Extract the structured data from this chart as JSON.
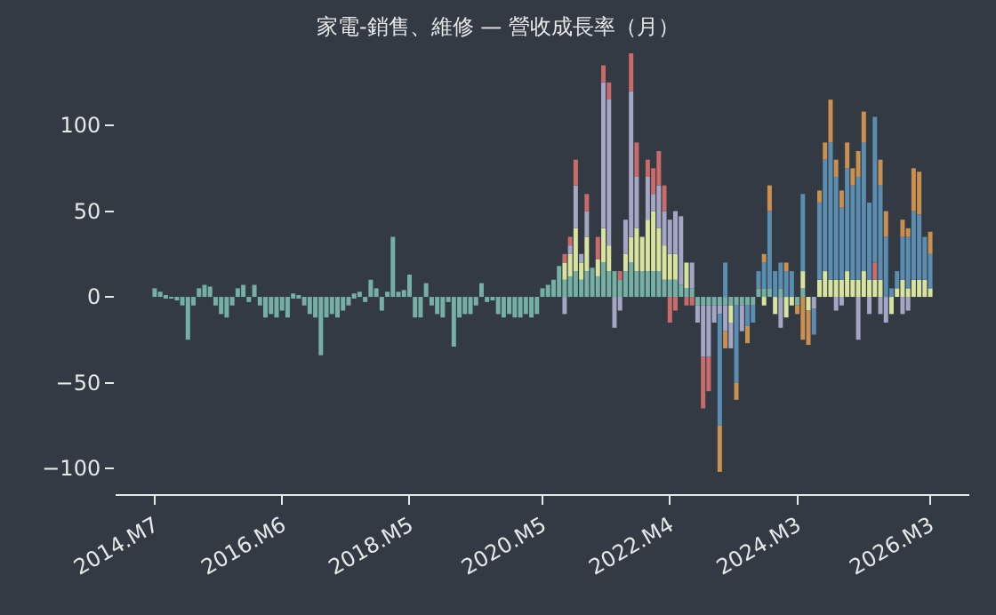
{
  "chart_data": {
    "type": "bar",
    "stacked": true,
    "title": "家電-銷售、維修 — 營收成長率（月）",
    "categories": [
      "2014.M7",
      null,
      null,
      null,
      null,
      null,
      null,
      null,
      null,
      null,
      null,
      null,
      null,
      null,
      null,
      null,
      null,
      null,
      null,
      null,
      null,
      null,
      null,
      "2016.M6",
      null,
      null,
      null,
      null,
      null,
      null,
      null,
      null,
      null,
      null,
      null,
      null,
      null,
      null,
      null,
      null,
      null,
      null,
      null,
      null,
      null,
      null,
      "2018.M5",
      null,
      null,
      null,
      null,
      null,
      null,
      null,
      null,
      null,
      null,
      null,
      null,
      null,
      null,
      null,
      null,
      null,
      null,
      null,
      null,
      null,
      null,
      null,
      "2020.M5",
      null,
      null,
      null,
      null,
      null,
      null,
      null,
      null,
      null,
      null,
      null,
      null,
      null,
      null,
      null,
      null,
      null,
      null,
      null,
      null,
      null,
      null,
      "2022.M4",
      null,
      null,
      null,
      null,
      null,
      null,
      null,
      null,
      null,
      null,
      null,
      null,
      null,
      null,
      null,
      null,
      null,
      null,
      null,
      null,
      null,
      null,
      "2024.M3",
      null,
      null,
      null,
      null,
      null,
      null,
      null,
      null,
      null,
      null,
      null,
      null,
      null,
      null,
      null,
      null,
      null,
      null,
      null,
      null,
      null,
      null,
      null,
      "2026.M3"
    ],
    "ylim": [
      -115,
      142
    ],
    "yticks": [
      -100,
      -50,
      0,
      50,
      100
    ],
    "grid": false,
    "series": [
      {
        "color": "#76b0a4",
        "values": [
          5,
          3,
          1,
          -1,
          -2,
          -5,
          -25,
          -5,
          5,
          7,
          6,
          -5,
          -10,
          -12,
          -5,
          5,
          7,
          -3,
          7,
          -5,
          -12,
          -10,
          -12,
          -8,
          -12,
          2,
          1,
          -5,
          -10,
          -12,
          -34,
          -12,
          -10,
          -12,
          -8,
          -5,
          2,
          3,
          -3,
          10,
          5,
          -8,
          3,
          35,
          3,
          4,
          13,
          -12,
          -12,
          8,
          -5,
          -10,
          -12,
          -3,
          -29,
          -12,
          -10,
          -10,
          -5,
          8,
          -3,
          -2,
          -10,
          -12,
          -10,
          -12,
          -12,
          -10,
          -12,
          -10,
          5,
          7,
          10,
          18,
          10,
          12,
          15,
          10,
          15,
          17,
          12,
          20,
          15,
          15,
          10,
          15,
          20,
          15,
          15,
          15,
          15,
          15,
          10,
          10,
          10,
          7,
          5,
          5,
          -5,
          -5,
          -5,
          -5,
          -5,
          -5,
          -5,
          -5,
          -5,
          -5,
          -5,
          5,
          5,
          5,
          null,
          5,
          null,
          null,
          -5,
          5,
          null,
          null,
          null,
          null,
          null,
          null,
          null,
          null,
          null,
          null,
          null,
          null,
          null,
          null,
          null,
          null,
          null,
          null,
          null,
          null,
          null,
          null,
          null
        ]
      },
      {
        "color": "#d9e3a0",
        "values": [
          null,
          null,
          null,
          null,
          null,
          null,
          null,
          null,
          null,
          null,
          null,
          null,
          null,
          null,
          null,
          null,
          null,
          null,
          null,
          null,
          null,
          null,
          null,
          null,
          null,
          null,
          null,
          null,
          null,
          null,
          null,
          null,
          null,
          null,
          null,
          null,
          null,
          null,
          null,
          null,
          null,
          null,
          null,
          null,
          null,
          null,
          null,
          null,
          null,
          null,
          null,
          null,
          null,
          null,
          null,
          null,
          null,
          null,
          null,
          null,
          null,
          null,
          null,
          null,
          null,
          null,
          null,
          null,
          null,
          null,
          null,
          null,
          null,
          null,
          10,
          13,
          25,
          10,
          20,
          null,
          10,
          20,
          15,
          null,
          null,
          10,
          15,
          25,
          20,
          30,
          35,
          25,
          20,
          15,
          15,
          null,
          15,
          null,
          null,
          null,
          null,
          null,
          null,
          null,
          -10,
          null,
          null,
          null,
          null,
          null,
          -5,
          null,
          -10,
          null,
          -12,
          -5,
          null,
          10,
          -8,
          null,
          10,
          15,
          10,
          10,
          10,
          15,
          10,
          10,
          15,
          10,
          10,
          10,
          null,
          -10,
          5,
          10,
          5,
          10,
          10,
          10,
          5
        ]
      },
      {
        "color": "#a4a6c4",
        "values": [
          null,
          null,
          null,
          null,
          null,
          null,
          null,
          null,
          null,
          null,
          null,
          null,
          null,
          null,
          null,
          null,
          null,
          null,
          null,
          null,
          null,
          null,
          null,
          null,
          null,
          null,
          null,
          null,
          null,
          null,
          null,
          null,
          null,
          null,
          null,
          null,
          null,
          null,
          null,
          null,
          null,
          null,
          null,
          null,
          null,
          null,
          null,
          null,
          null,
          null,
          null,
          null,
          null,
          null,
          null,
          null,
          null,
          null,
          null,
          null,
          null,
          null,
          null,
          null,
          null,
          null,
          null,
          null,
          null,
          null,
          null,
          null,
          null,
          null,
          -10,
          5,
          25,
          5,
          15,
          null,
          null,
          85,
          85,
          -18,
          -8,
          20,
          85,
          30,
          null,
          25,
          10,
          25,
          20,
          20,
          25,
          40,
          null,
          15,
          -10,
          -30,
          -30,
          -10,
          -5,
          -15,
          -15,
          null,
          -15,
          null,
          null,
          null,
          null,
          null,
          null,
          -18,
          null,
          null,
          null,
          null,
          null,
          -7,
          null,
          null,
          null,
          -8,
          -5,
          null,
          null,
          -25,
          null,
          -10,
          null,
          -10,
          -15,
          null,
          null,
          -10,
          -8,
          null,
          null,
          null,
          null
        ]
      },
      {
        "color": "#c96b6b",
        "values": [
          null,
          null,
          null,
          null,
          null,
          null,
          null,
          null,
          null,
          null,
          null,
          null,
          null,
          null,
          null,
          null,
          null,
          null,
          null,
          null,
          null,
          null,
          null,
          null,
          null,
          null,
          null,
          null,
          null,
          null,
          null,
          null,
          null,
          null,
          null,
          null,
          null,
          null,
          null,
          null,
          null,
          null,
          null,
          null,
          null,
          null,
          null,
          null,
          null,
          null,
          null,
          null,
          null,
          null,
          null,
          null,
          null,
          null,
          null,
          null,
          null,
          null,
          null,
          null,
          null,
          null,
          null,
          null,
          null,
          null,
          null,
          null,
          null,
          null,
          5,
          5,
          15,
          null,
          10,
          null,
          13,
          10,
          10,
          null,
          5,
          null,
          22,
          20,
          null,
          10,
          15,
          20,
          15,
          -15,
          -8,
          null,
          -5,
          -5,
          null,
          -30,
          -20,
          null,
          null,
          null,
          null,
          null,
          null,
          null,
          null,
          null,
          null,
          null,
          null,
          null,
          null,
          null,
          null,
          null,
          null,
          null,
          null,
          null,
          null,
          null,
          null,
          null,
          null,
          null,
          null,
          null,
          10,
          null,
          null,
          null,
          null,
          null,
          null,
          null,
          null,
          null,
          null
        ]
      },
      {
        "color": "#5b8db0",
        "values": [
          null,
          null,
          null,
          null,
          null,
          null,
          null,
          null,
          null,
          null,
          null,
          null,
          null,
          null,
          null,
          null,
          null,
          null,
          null,
          null,
          null,
          null,
          null,
          null,
          null,
          null,
          null,
          null,
          null,
          null,
          null,
          null,
          null,
          null,
          null,
          null,
          null,
          null,
          null,
          null,
          null,
          null,
          null,
          null,
          null,
          null,
          null,
          null,
          null,
          null,
          null,
          null,
          null,
          null,
          null,
          null,
          null,
          null,
          null,
          null,
          null,
          null,
          null,
          null,
          null,
          null,
          null,
          null,
          null,
          null,
          null,
          null,
          null,
          null,
          null,
          null,
          null,
          null,
          null,
          null,
          null,
          null,
          null,
          null,
          null,
          null,
          null,
          null,
          null,
          null,
          null,
          null,
          null,
          null,
          null,
          null,
          null,
          null,
          null,
          null,
          null,
          null,
          -65,
          20,
          null,
          -45,
          null,
          -12,
          -10,
          10,
          15,
          45,
          15,
          15,
          15,
          15,
          null,
          45,
          null,
          -15,
          45,
          65,
          80,
          60,
          42,
          60,
          55,
          60,
          75,
          45,
          85,
          55,
          35,
          5,
          10,
          25,
          30,
          40,
          38,
          25,
          20
        ]
      },
      {
        "color": "#c99050",
        "values": [
          null,
          null,
          null,
          null,
          null,
          null,
          null,
          null,
          null,
          null,
          null,
          null,
          null,
          null,
          null,
          null,
          null,
          null,
          null,
          null,
          null,
          null,
          null,
          null,
          null,
          null,
          null,
          null,
          null,
          null,
          null,
          null,
          null,
          null,
          null,
          null,
          null,
          null,
          null,
          null,
          null,
          null,
          null,
          null,
          null,
          null,
          null,
          null,
          null,
          null,
          null,
          null,
          null,
          null,
          null,
          null,
          null,
          null,
          null,
          null,
          null,
          null,
          null,
          null,
          null,
          null,
          null,
          null,
          null,
          null,
          null,
          null,
          null,
          null,
          null,
          null,
          null,
          null,
          null,
          null,
          null,
          null,
          null,
          null,
          null,
          null,
          null,
          null,
          null,
          null,
          null,
          null,
          null,
          null,
          null,
          null,
          null,
          null,
          null,
          null,
          null,
          null,
          -27,
          -10,
          null,
          -10,
          null,
          -10,
          null,
          null,
          5,
          15,
          null,
          null,
          5,
          null,
          -5,
          -25,
          -20,
          null,
          7,
          10,
          25,
          10,
          10,
          15,
          10,
          15,
          18,
          null,
          null,
          15,
          15,
          null,
          null,
          10,
          5,
          25,
          25,
          null,
          13
        ]
      }
    ]
  }
}
